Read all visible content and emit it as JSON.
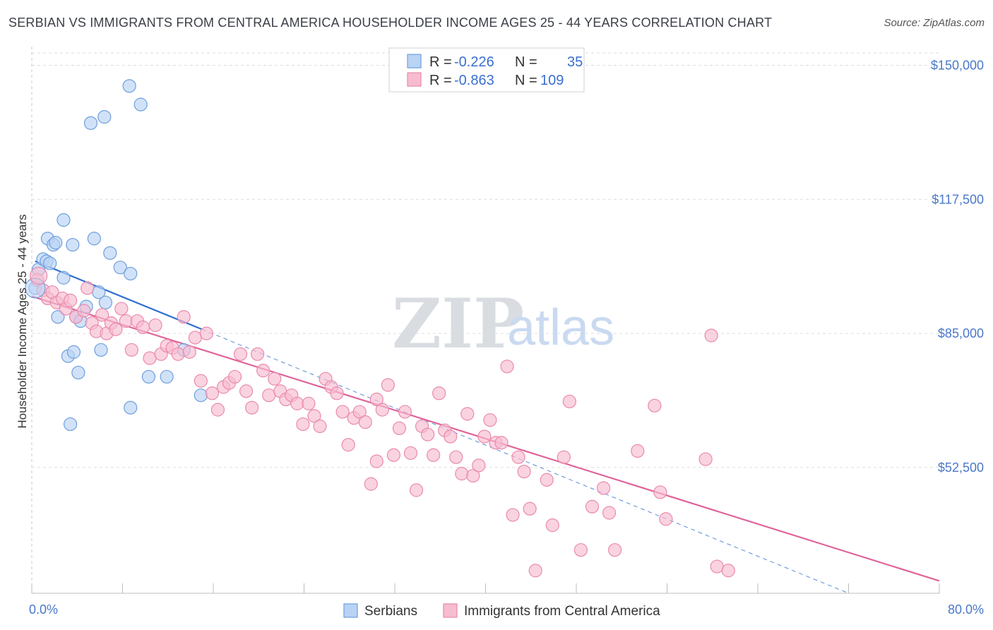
{
  "title": "SERBIAN VS IMMIGRANTS FROM CENTRAL AMERICA HOUSEHOLDER INCOME AGES 25 - 44 YEARS CORRELATION CHART",
  "source": "Source: ZipAtlas.com",
  "watermark": {
    "zip": "ZIP",
    "atlas": "atlas"
  },
  "colors": {
    "serbians_fill": "#b9d3f5",
    "serbians_stroke": "#6f9fdd",
    "serbians_line": "#2f6fd0",
    "immigrants_fill": "#f7bcd0",
    "immigrants_stroke": "#e98aad",
    "immigrants_line": "#e0649a",
    "grid": "#dcdcdc",
    "tick_label": "#4a78c8"
  },
  "legend": {
    "rows": [
      {
        "r_label": "R =",
        "r_value": "-0.226",
        "n_label": "N =",
        "n_value": "35"
      },
      {
        "r_label": "R =",
        "r_value": "-0.863",
        "n_label": "N =",
        "n_value": "109"
      }
    ]
  },
  "chart_data": {
    "type": "scatter",
    "title": "SERBIAN VS IMMIGRANTS FROM CENTRAL AMERICA HOUSEHOLDER INCOME AGES 25 - 44 YEARS CORRELATION CHART",
    "xlabel": "",
    "ylabel": "Householder Income Ages 25 - 44 years",
    "xlim": [
      0,
      80
    ],
    "ylim": [
      22000,
      153000
    ],
    "x_tick_labels": [
      "0.0%",
      "80.0%"
    ],
    "y_ticks": [
      52500,
      85000,
      117500,
      150000
    ],
    "y_tick_labels": [
      "$52,500",
      "$85,000",
      "$117,500",
      "$150,000"
    ],
    "grid": true,
    "legend_position": "top-center",
    "series": [
      {
        "name": "Serbians",
        "points": [
          [
            0.3,
            96000
          ],
          [
            0.6,
            100500
          ],
          [
            1.0,
            103000
          ],
          [
            1.3,
            102500
          ],
          [
            1.4,
            108000
          ],
          [
            1.6,
            102000
          ],
          [
            1.9,
            106500
          ],
          [
            2.1,
            107000
          ],
          [
            2.3,
            89000
          ],
          [
            2.8,
            112500
          ],
          [
            2.8,
            98500
          ],
          [
            3.2,
            79500
          ],
          [
            3.4,
            63000
          ],
          [
            3.7,
            80500
          ],
          [
            3.9,
            89000
          ],
          [
            4.1,
            75500
          ],
          [
            4.3,
            88000
          ],
          [
            4.8,
            91500
          ],
          [
            3.6,
            106500
          ],
          [
            5.5,
            108000
          ],
          [
            5.9,
            95000
          ],
          [
            6.1,
            81000
          ],
          [
            6.5,
            92500
          ],
          [
            6.9,
            104500
          ],
          [
            7.8,
            101000
          ],
          [
            8.7,
            99500
          ],
          [
            8.7,
            67000
          ],
          [
            10.3,
            74500
          ],
          [
            11.9,
            74500
          ],
          [
            13.4,
            81000
          ],
          [
            14.9,
            70000
          ],
          [
            5.2,
            136000
          ],
          [
            6.4,
            137500
          ],
          [
            9.6,
            140500
          ],
          [
            8.6,
            145000
          ]
        ],
        "trend": {
          "x": [
            0.3,
            15.0
          ],
          "y": [
            102500,
            86000
          ]
        },
        "trend_dashed": {
          "x": [
            15.0,
            72.0
          ],
          "y": [
            86000,
            22000
          ]
        }
      },
      {
        "name": "Immigrants from Central America",
        "points": [
          [
            0.5,
            98000
          ],
          [
            1.0,
            95500
          ],
          [
            1.4,
            93500
          ],
          [
            1.8,
            95000
          ],
          [
            2.2,
            92500
          ],
          [
            2.7,
            93500
          ],
          [
            3.0,
            91000
          ],
          [
            3.4,
            93000
          ],
          [
            3.9,
            89000
          ],
          [
            4.6,
            90500
          ],
          [
            4.9,
            96000
          ],
          [
            5.3,
            87500
          ],
          [
            5.7,
            85500
          ],
          [
            6.2,
            89500
          ],
          [
            6.6,
            85000
          ],
          [
            7.0,
            87500
          ],
          [
            7.4,
            86000
          ],
          [
            7.9,
            91000
          ],
          [
            8.3,
            88000
          ],
          [
            8.8,
            81000
          ],
          [
            9.3,
            88000
          ],
          [
            9.8,
            86500
          ],
          [
            10.4,
            79000
          ],
          [
            10.9,
            87000
          ],
          [
            11.4,
            80000
          ],
          [
            11.9,
            82000
          ],
          [
            12.4,
            81500
          ],
          [
            12.9,
            80000
          ],
          [
            13.4,
            89000
          ],
          [
            13.9,
            80500
          ],
          [
            14.4,
            84000
          ],
          [
            14.9,
            73500
          ],
          [
            15.4,
            85000
          ],
          [
            15.9,
            70500
          ],
          [
            16.4,
            66500
          ],
          [
            16.9,
            72000
          ],
          [
            17.4,
            73000
          ],
          [
            17.9,
            74500
          ],
          [
            18.4,
            80000
          ],
          [
            18.9,
            71000
          ],
          [
            19.4,
            67000
          ],
          [
            19.9,
            80000
          ],
          [
            20.4,
            76000
          ],
          [
            20.9,
            70000
          ],
          [
            21.4,
            74000
          ],
          [
            21.9,
            71000
          ],
          [
            22.4,
            69000
          ],
          [
            22.9,
            70000
          ],
          [
            23.4,
            68000
          ],
          [
            23.9,
            63000
          ],
          [
            24.4,
            68000
          ],
          [
            24.9,
            65000
          ],
          [
            25.4,
            62500
          ],
          [
            25.9,
            74000
          ],
          [
            26.4,
            72000
          ],
          [
            26.9,
            70500
          ],
          [
            27.4,
            66000
          ],
          [
            27.9,
            58000
          ],
          [
            28.4,
            64500
          ],
          [
            28.9,
            66000
          ],
          [
            29.4,
            63500
          ],
          [
            29.9,
            48500
          ],
          [
            30.4,
            69000
          ],
          [
            30.9,
            66500
          ],
          [
            31.4,
            72500
          ],
          [
            31.9,
            55500
          ],
          [
            32.4,
            62000
          ],
          [
            32.9,
            66000
          ],
          [
            33.4,
            56000
          ],
          [
            33.9,
            47000
          ],
          [
            34.4,
            62500
          ],
          [
            34.9,
            60500
          ],
          [
            35.4,
            55500
          ],
          [
            35.9,
            70500
          ],
          [
            36.4,
            61500
          ],
          [
            36.9,
            60000
          ],
          [
            37.4,
            55000
          ],
          [
            37.9,
            51000
          ],
          [
            38.4,
            65500
          ],
          [
            38.9,
            50500
          ],
          [
            39.4,
            53000
          ],
          [
            39.9,
            60000
          ],
          [
            40.4,
            64000
          ],
          [
            40.9,
            58500
          ],
          [
            41.4,
            58500
          ],
          [
            41.9,
            77000
          ],
          [
            42.4,
            41000
          ],
          [
            42.9,
            55000
          ],
          [
            43.4,
            51500
          ],
          [
            43.9,
            42500
          ],
          [
            44.4,
            27500
          ],
          [
            45.4,
            49500
          ],
          [
            45.9,
            38500
          ],
          [
            46.9,
            55000
          ],
          [
            47.4,
            68500
          ],
          [
            48.4,
            32500
          ],
          [
            49.4,
            43000
          ],
          [
            50.4,
            47500
          ],
          [
            50.9,
            41500
          ],
          [
            51.4,
            32500
          ],
          [
            53.4,
            56500
          ],
          [
            54.9,
            67500
          ],
          [
            55.4,
            46500
          ],
          [
            55.9,
            40000
          ],
          [
            59.4,
            54500
          ],
          [
            59.9,
            84500
          ],
          [
            60.4,
            28500
          ],
          [
            61.4,
            27500
          ],
          [
            30.4,
            54000
          ]
        ],
        "trend": {
          "x": [
            0.0,
            80.0
          ],
          "y": [
            94000,
            25000
          ]
        }
      }
    ]
  },
  "bottom_legend": [
    {
      "label": "Serbians"
    },
    {
      "label": "Immigrants from Central America"
    }
  ]
}
